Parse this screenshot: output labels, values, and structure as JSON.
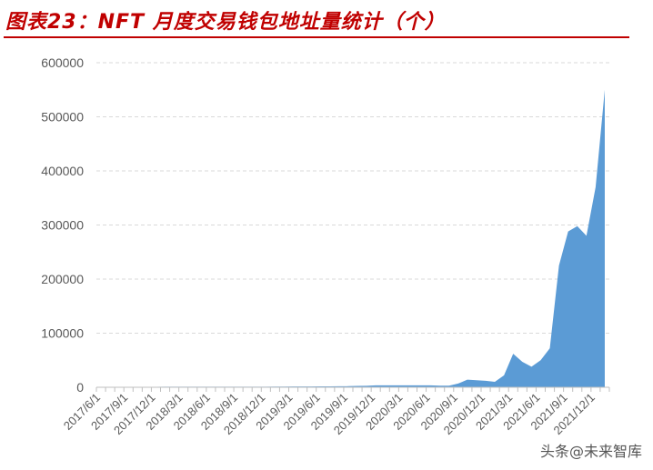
{
  "title": "图表23：NFT 月度交易钱包地址量统计（个）",
  "watermark": "头条@未来智库",
  "colors": {
    "title": "#c00000",
    "area": "#5b9bd5",
    "grid": "#d9d9d9",
    "axis": "#bfbfbf",
    "text": "#595959"
  },
  "chart_data": {
    "type": "area",
    "title": "NFT 月度交易钱包地址量统计（个）",
    "xlabel": "",
    "ylabel": "",
    "ylim": [
      0,
      600000
    ],
    "yticks": [
      "0",
      "100000",
      "200000",
      "300000",
      "400000",
      "500000",
      "600000"
    ],
    "grid": true,
    "xtick_labels": [
      "2017/6/1",
      "2017/9/1",
      "2017/12/1",
      "2018/3/1",
      "2018/6/1",
      "2018/9/1",
      "2018/12/1",
      "2019/3/1",
      "2019/6/1",
      "2019/9/1",
      "2019/12/1",
      "2020/3/1",
      "2020/6/1",
      "2020/9/1",
      "2020/12/1",
      "2021/3/1",
      "2021/6/1",
      "2021/9/1",
      "2021/12/1"
    ],
    "x": [
      "2017/6",
      "2017/7",
      "2017/8",
      "2017/9",
      "2017/10",
      "2017/11",
      "2017/12",
      "2018/1",
      "2018/2",
      "2018/3",
      "2018/4",
      "2018/5",
      "2018/6",
      "2018/7",
      "2018/8",
      "2018/9",
      "2018/10",
      "2018/11",
      "2018/12",
      "2019/1",
      "2019/2",
      "2019/3",
      "2019/4",
      "2019/5",
      "2019/6",
      "2019/7",
      "2019/8",
      "2019/9",
      "2019/10",
      "2019/11",
      "2019/12",
      "2020/1",
      "2020/2",
      "2020/3",
      "2020/4",
      "2020/5",
      "2020/6",
      "2020/7",
      "2020/8",
      "2020/9",
      "2020/10",
      "2020/11",
      "2020/12",
      "2021/1",
      "2021/2",
      "2021/3",
      "2021/4",
      "2021/5",
      "2021/6",
      "2021/7",
      "2021/8",
      "2021/9",
      "2021/10",
      "2021/11",
      "2021/12",
      "2022/1"
    ],
    "values": [
      200,
      300,
      400,
      500,
      600,
      700,
      900,
      1000,
      1000,
      1000,
      1000,
      1000,
      1000,
      1000,
      1000,
      1000,
      1000,
      1000,
      1000,
      1200,
      1300,
      1500,
      1500,
      1500,
      1600,
      1600,
      1800,
      2000,
      2500,
      2800,
      3500,
      3500,
      3500,
      3500,
      3500,
      3500,
      3500,
      3000,
      3000,
      7000,
      14000,
      13000,
      12000,
      10000,
      22000,
      62000,
      47000,
      38000,
      50000,
      72000,
      225000,
      288000,
      298000,
      280000,
      370000,
      550000
    ]
  }
}
